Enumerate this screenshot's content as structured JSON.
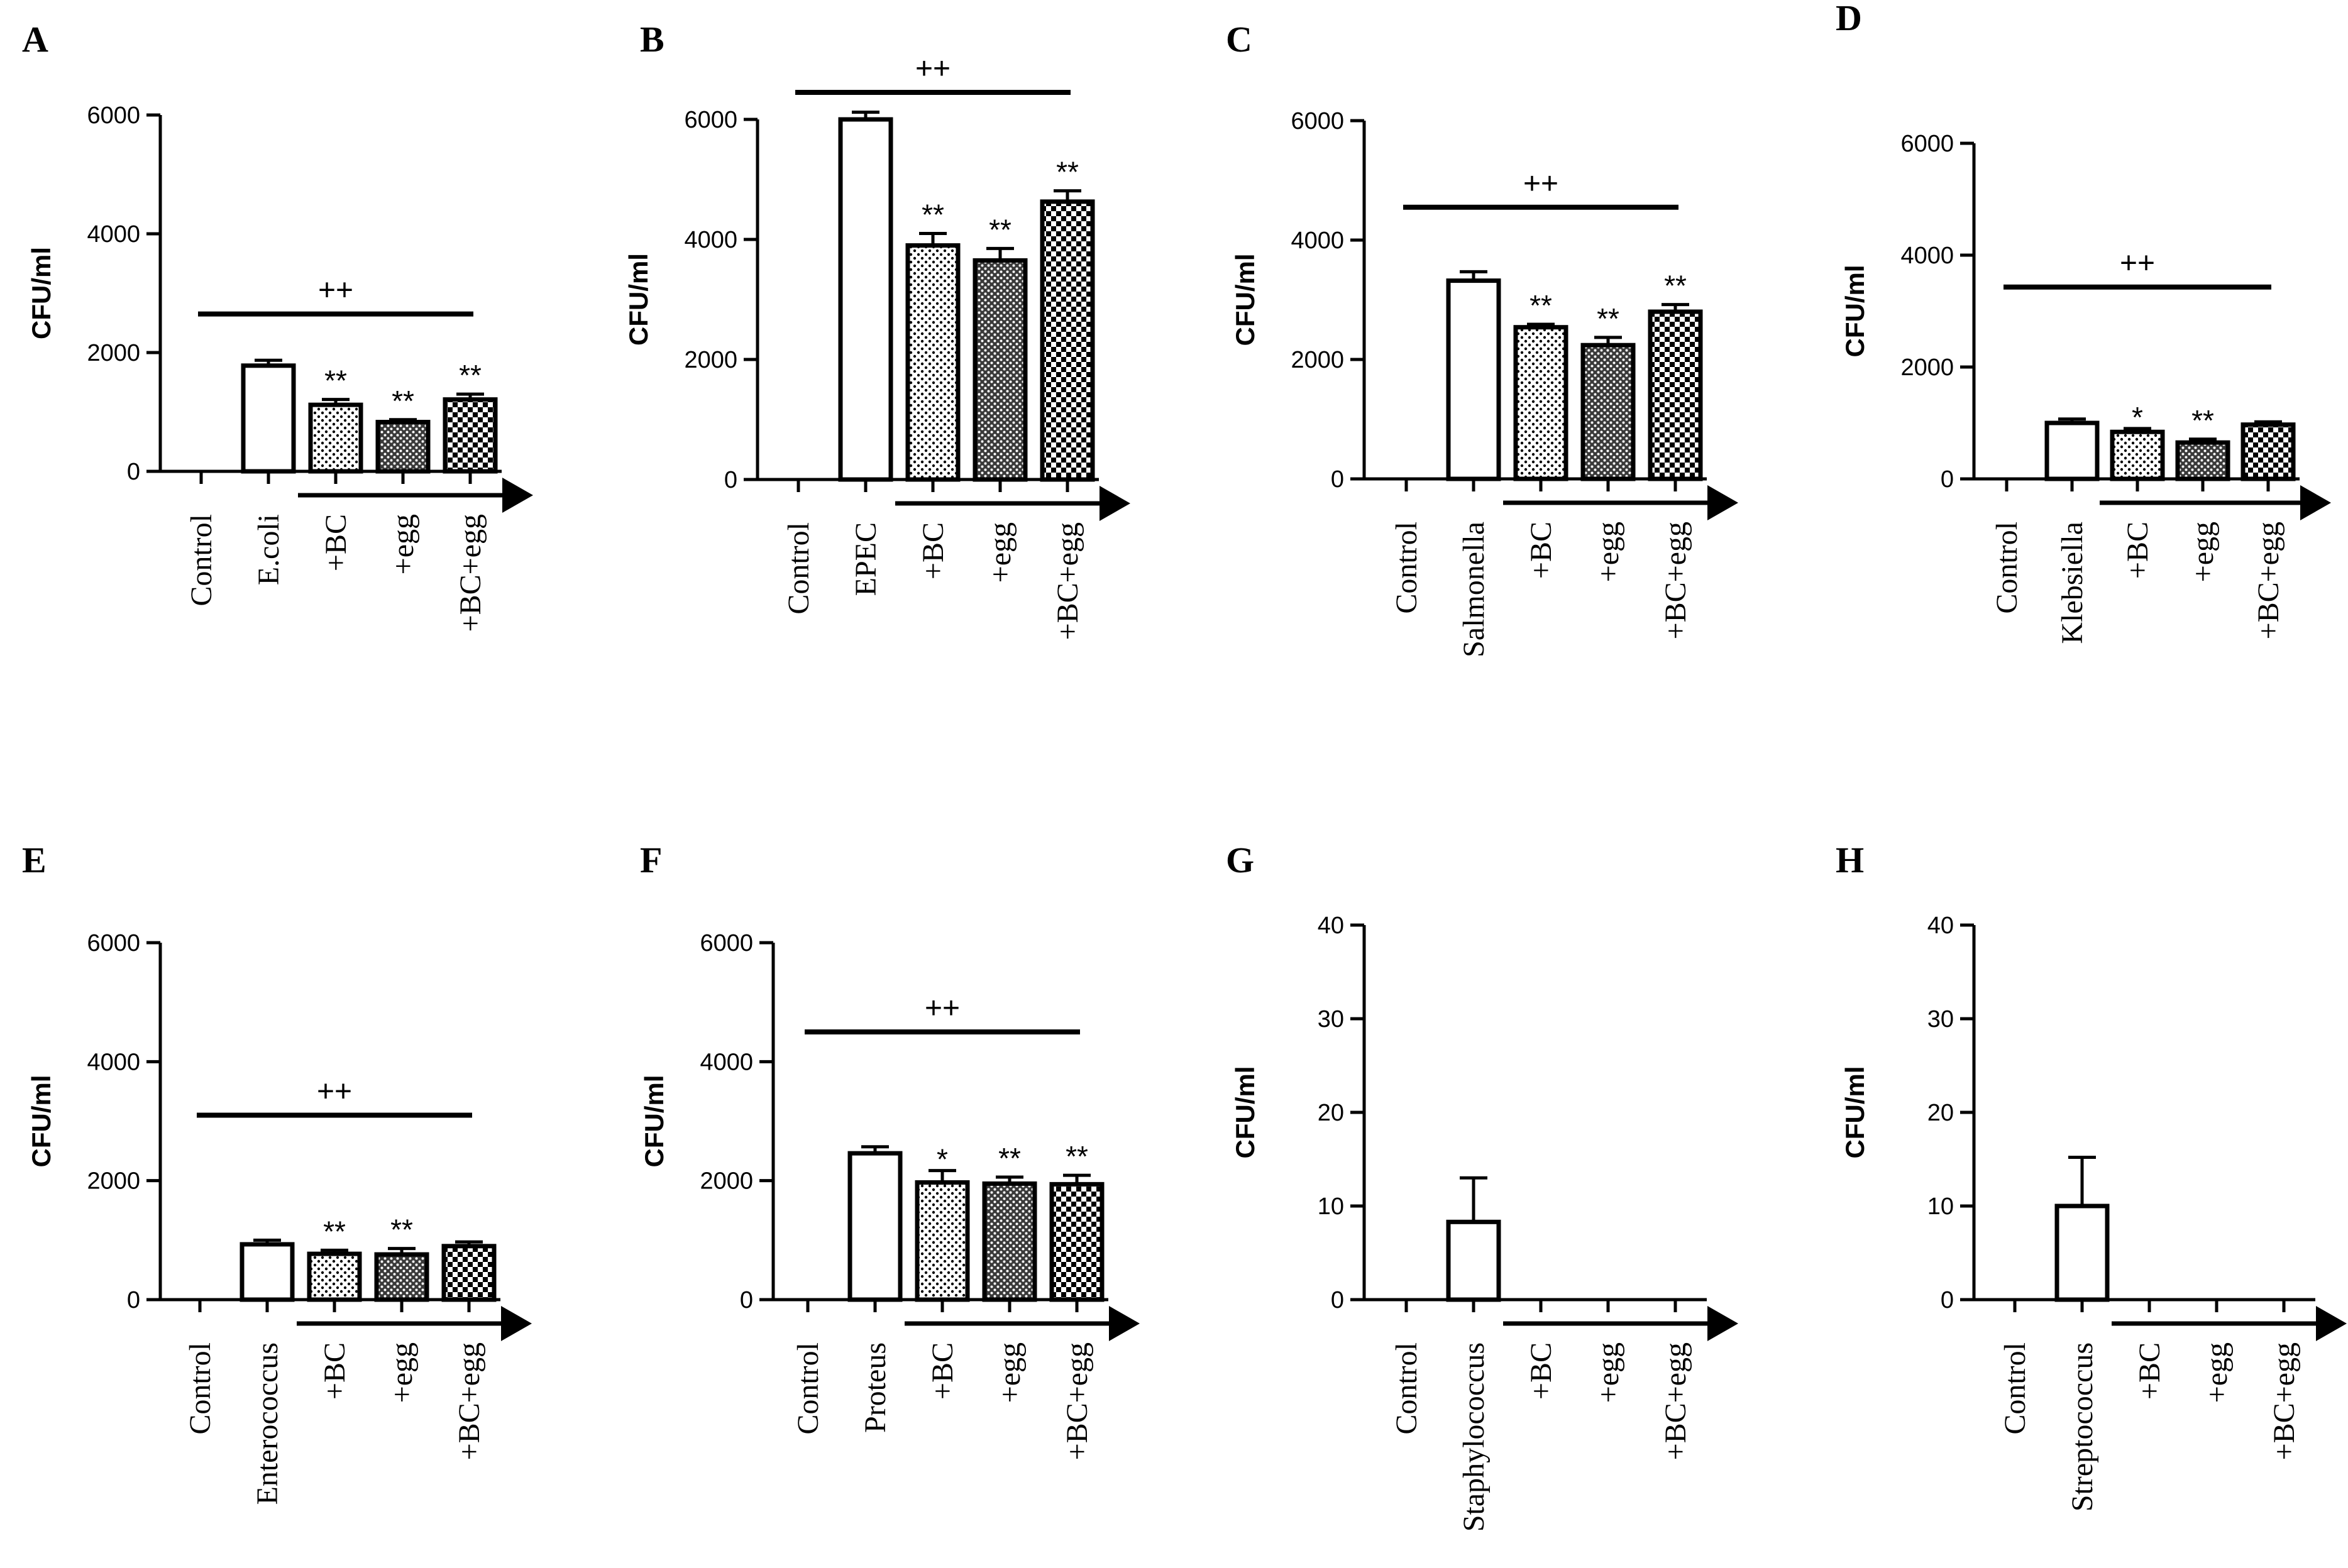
{
  "chart_data": [
    {
      "panel": "A",
      "type": "bar",
      "ylabel": "CFU/ml",
      "ylim": [
        0,
        6000
      ],
      "yticks": [
        0,
        2000,
        4000,
        6000
      ],
      "categories": [
        "Control",
        "E.coli",
        "+BC",
        "+egg",
        "+BC+egg"
      ],
      "values": [
        0,
        1780,
        1120,
        830,
        1210
      ],
      "errors": [
        0,
        90,
        90,
        40,
        90
      ],
      "significance": [
        "",
        "",
        "**",
        "**",
        "**"
      ],
      "bracket_label": "++",
      "bracket_y": 2650
    },
    {
      "panel": "B",
      "type": "bar",
      "ylabel": "CFU/ml",
      "ylim": [
        0,
        6000
      ],
      "yticks": [
        0,
        2000,
        4000,
        6000
      ],
      "categories": [
        "Control",
        "EPEC",
        "+BC",
        "+egg",
        "+BC+egg"
      ],
      "values": [
        0,
        6000,
        3900,
        3650,
        4630
      ],
      "errors": [
        0,
        120,
        200,
        200,
        180
      ],
      "significance": [
        "",
        "",
        "**",
        "**",
        "**"
      ],
      "bracket_label": "++",
      "bracket_y": 6450
    },
    {
      "panel": "C",
      "type": "bar",
      "ylabel": "CFU/ml",
      "ylim": [
        0,
        6000
      ],
      "yticks": [
        0,
        2000,
        4000,
        6000
      ],
      "categories": [
        "Control",
        "Salmonella",
        "+BC",
        "+egg",
        "+BC+egg"
      ],
      "values": [
        0,
        3320,
        2540,
        2240,
        2800
      ],
      "errors": [
        0,
        150,
        50,
        130,
        120
      ],
      "significance": [
        "",
        "",
        "**",
        "**",
        "**"
      ],
      "bracket_label": "++",
      "bracket_y": 4550
    },
    {
      "panel": "D",
      "type": "bar",
      "ylabel": "CFU/ml",
      "ylim": [
        0,
        6000
      ],
      "yticks": [
        0,
        2000,
        4000,
        6000
      ],
      "categories": [
        "Control",
        "Klebsiella",
        "+BC",
        "+egg",
        "+BC+egg"
      ],
      "values": [
        0,
        1000,
        840,
        650,
        970
      ],
      "errors": [
        0,
        70,
        60,
        60,
        50
      ],
      "significance": [
        "",
        "",
        "*",
        "**",
        ""
      ],
      "bracket_label": "++",
      "bracket_y": 3430
    },
    {
      "panel": "E",
      "type": "bar",
      "ylabel": "CFU/ml",
      "ylim": [
        0,
        6000
      ],
      "yticks": [
        0,
        2000,
        4000,
        6000
      ],
      "categories": [
        "Control",
        "Enterococcus",
        "+BC",
        "+egg",
        "+BC+egg"
      ],
      "values": [
        0,
        930,
        770,
        760,
        900
      ],
      "errors": [
        0,
        70,
        60,
        100,
        70
      ],
      "significance": [
        "",
        "",
        "**",
        "**",
        ""
      ],
      "bracket_label": "++",
      "bracket_y": 3100
    },
    {
      "panel": "F",
      "type": "bar",
      "ylabel": "CFU/ml",
      "ylim": [
        0,
        6000
      ],
      "yticks": [
        0,
        2000,
        4000,
        6000
      ],
      "categories": [
        "Control",
        "Proteus",
        "+BC",
        "+egg",
        "+BC+egg"
      ],
      "values": [
        0,
        2460,
        1970,
        1950,
        1940
      ],
      "errors": [
        0,
        110,
        200,
        110,
        150
      ],
      "significance": [
        "",
        "",
        "*",
        "**",
        "**"
      ],
      "bracket_label": "++",
      "bracket_y": 4500
    },
    {
      "panel": "G",
      "type": "bar",
      "ylabel": "CFU/ml",
      "ylim": [
        0,
        40
      ],
      "yticks": [
        0,
        10,
        20,
        30,
        40
      ],
      "categories": [
        "Control",
        "Staphylococcus",
        "+BC",
        "+egg",
        "+BC+egg"
      ],
      "values": [
        0,
        8.3,
        0,
        0,
        0
      ],
      "errors": [
        0,
        4.7,
        0,
        0,
        0
      ],
      "significance": [
        "",
        "",
        "",
        "",
        ""
      ],
      "bracket_label": "",
      "bracket_y": null
    },
    {
      "panel": "H",
      "type": "bar",
      "ylabel": "CFU/ml",
      "ylim": [
        0,
        40
      ],
      "yticks": [
        0,
        10,
        20,
        30,
        40
      ],
      "categories": [
        "Control",
        "Streptococcus",
        "+BC",
        "+egg",
        "+BC+egg"
      ],
      "values": [
        0,
        10,
        0,
        0,
        0
      ],
      "errors": [
        0,
        5.2,
        0,
        0,
        0
      ],
      "significance": [
        "",
        "",
        "",
        "",
        ""
      ],
      "bracket_label": "",
      "bracket_y": null
    }
  ],
  "fill_patterns": [
    "white",
    "white",
    "dots-light",
    "dots-dark",
    "checker"
  ],
  "colors": {
    "ink": "#000000",
    "background": "#ffffff"
  }
}
